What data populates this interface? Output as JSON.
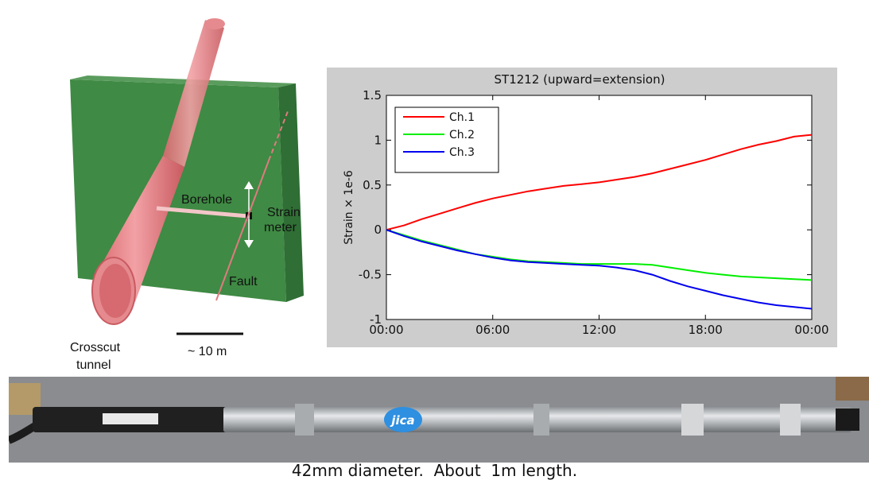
{
  "diagram": {
    "labels": {
      "borehole": "Borehole",
      "strain_meter_line1": "Strain",
      "strain_meter_line2": "meter",
      "fault": "Fault",
      "crosscut_line1": "Crosscut",
      "crosscut_line2": "tunnel",
      "scale": "~ 10 m"
    },
    "colors": {
      "plane": "#3f8a44",
      "tunnel": "#e58a8e",
      "fault_line": "#e07a80"
    }
  },
  "chart_data": {
    "type": "line",
    "title": "ST1212 (upward=extension)",
    "xlabel": "",
    "ylabel": "Strain × 1e-6",
    "xlim": [
      0,
      24
    ],
    "ylim": [
      -1,
      1.5
    ],
    "yticks": [
      -1,
      -0.5,
      0,
      0.5,
      1,
      1.5
    ],
    "ytick_labels": [
      "-1",
      "-0.5",
      "0",
      "0.5",
      "1",
      "1.5"
    ],
    "xticks": [
      0,
      6,
      12,
      18,
      24
    ],
    "xtick_labels": [
      "00:00",
      "06:00",
      "12:00",
      "18:00",
      "00:00"
    ],
    "grid": false,
    "legend_position": "top-left",
    "series": [
      {
        "name": "Ch.1",
        "color": "#ff0000",
        "x": [
          0,
          1,
          2,
          3,
          4,
          5,
          6,
          7,
          8,
          9,
          10,
          11,
          12,
          13,
          14,
          15,
          16,
          17,
          18,
          19,
          20,
          21,
          22,
          23,
          24
        ],
        "y": [
          0,
          0.05,
          0.12,
          0.18,
          0.24,
          0.3,
          0.35,
          0.39,
          0.43,
          0.46,
          0.49,
          0.51,
          0.53,
          0.56,
          0.59,
          0.63,
          0.68,
          0.73,
          0.78,
          0.84,
          0.9,
          0.95,
          0.99,
          1.04,
          1.06
        ]
      },
      {
        "name": "Ch.2",
        "color": "#00ee00",
        "x": [
          0,
          1,
          2,
          3,
          4,
          5,
          6,
          7,
          8,
          9,
          10,
          11,
          12,
          13,
          14,
          15,
          16,
          17,
          18,
          19,
          20,
          21,
          22,
          23,
          24
        ],
        "y": [
          0,
          -0.06,
          -0.12,
          -0.17,
          -0.22,
          -0.27,
          -0.3,
          -0.33,
          -0.35,
          -0.36,
          -0.37,
          -0.38,
          -0.38,
          -0.38,
          -0.38,
          -0.39,
          -0.42,
          -0.45,
          -0.48,
          -0.5,
          -0.52,
          -0.53,
          -0.54,
          -0.55,
          -0.56
        ]
      },
      {
        "name": "Ch.3",
        "color": "#0000ee",
        "x": [
          0,
          1,
          2,
          3,
          4,
          5,
          6,
          7,
          8,
          9,
          10,
          11,
          12,
          13,
          14,
          15,
          16,
          17,
          18,
          19,
          20,
          21,
          22,
          23,
          24
        ],
        "y": [
          0,
          -0.07,
          -0.13,
          -0.18,
          -0.23,
          -0.27,
          -0.31,
          -0.34,
          -0.36,
          -0.37,
          -0.38,
          -0.39,
          -0.4,
          -0.42,
          -0.45,
          -0.5,
          -0.57,
          -0.63,
          -0.68,
          -0.73,
          -0.77,
          -0.81,
          -0.84,
          -0.86,
          -0.88
        ]
      }
    ]
  },
  "photo": {
    "logo_text": "jica",
    "colors": {
      "background": "#7b7d80",
      "instrument": "#c3c6c9",
      "cable": "#1c1c1c",
      "logo": "#2f8fe0"
    }
  },
  "caption": "42mm diameter.  About  1m length."
}
